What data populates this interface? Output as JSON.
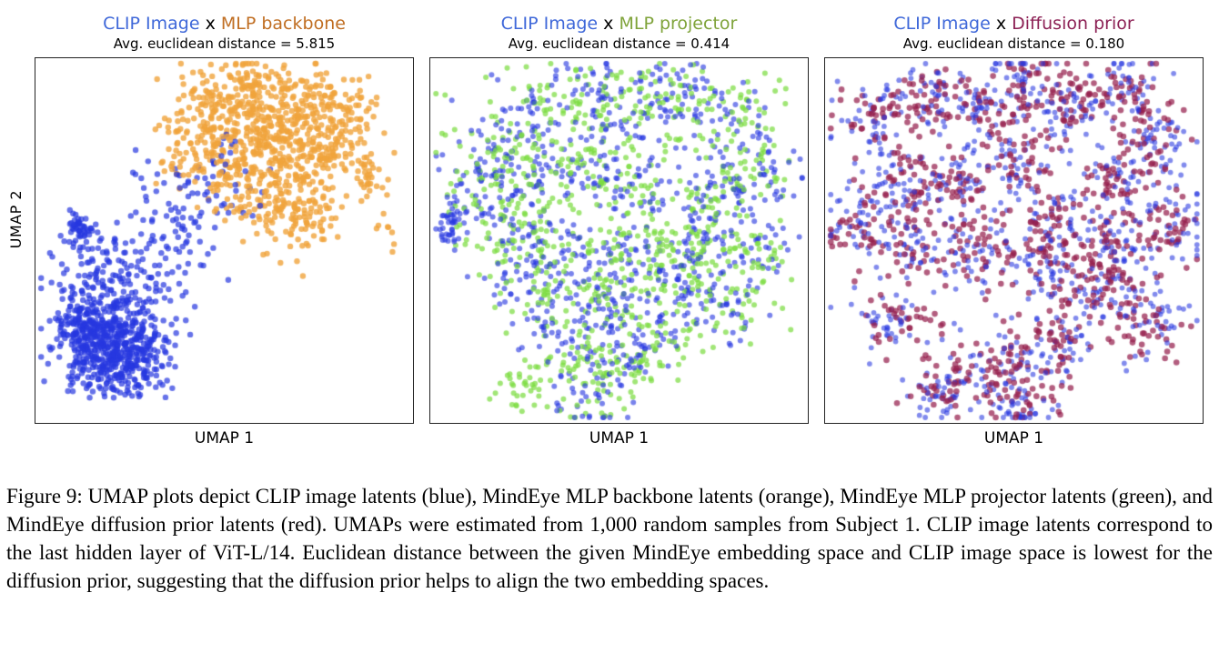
{
  "caption": "Figure 9: UMAP plots depict CLIP image latents (blue), MindEye MLP backbone latents (orange), MindEye MLP projector latents (green), and MindEye diffusion prior latents (red). UMAPs were estimated from 1,000 random samples from Subject 1. CLIP image latents correspond to the last hidden layer of ViT-L/14. Euclidean distance between the given MindEye embedding space and CLIP image space is lowest for the diffusion prior, suggesting that the diffusion prior helps to align the two embedding spaces.",
  "chart_data": [
    {
      "type": "scatter",
      "title_left": "CLIP Image",
      "title_sep": "x",
      "title_right": "MLP backbone",
      "title_left_color": "#3f68d9",
      "title_right_color": "#c06e22",
      "subtitle": "Avg. euclidean distance = 5.815",
      "xlabel": "UMAP 1",
      "ylabel": "UMAP 2",
      "legend": "none",
      "grid": false,
      "seed": 11,
      "series": [
        {
          "name": "CLIP image latents",
          "color": "#2737e0",
          "alpha": 0.7,
          "radius": 3.2,
          "spread": 0.055,
          "n_per_cluster": 40,
          "clusters": [
            [
              0.17,
              0.8,
              0.055,
              0.05,
              240
            ],
            [
              0.22,
              0.74,
              0.06,
              0.055,
              190
            ],
            [
              0.13,
              0.73,
              0.045,
              0.045,
              110
            ],
            [
              0.27,
              0.82,
              0.05,
              0.04,
              100
            ],
            [
              0.21,
              0.88,
              0.05,
              0.03,
              60
            ],
            [
              0.22,
              0.62,
              0.09,
              0.07,
              80
            ],
            [
              0.33,
              0.55,
              0.08,
              0.07,
              50
            ],
            [
              0.15,
              0.55,
              0.06,
              0.05,
              40
            ],
            [
              0.4,
              0.44,
              0.06,
              0.06,
              30
            ],
            [
              0.3,
              0.38,
              0.05,
              0.05,
              18
            ],
            [
              0.115,
              0.47,
              0.018,
              0.022,
              45
            ],
            [
              0.45,
              0.33,
              0.04,
              0.04,
              14
            ],
            [
              0.52,
              0.24,
              0.05,
              0.05,
              10
            ],
            [
              0.55,
              0.4,
              0.04,
              0.04,
              8
            ]
          ]
        },
        {
          "name": "MindEye MLP backbone latents",
          "color": "#f0a43c",
          "alpha": 0.8,
          "radius": 3.2,
          "spread": 0.06,
          "n_per_cluster": 40,
          "clusters": [
            [
              0.6,
              0.22,
              0.09,
              0.08,
              170
            ],
            [
              0.7,
              0.15,
              0.07,
              0.06,
              140
            ],
            [
              0.52,
              0.12,
              0.06,
              0.05,
              100
            ],
            [
              0.48,
              0.28,
              0.06,
              0.06,
              90
            ],
            [
              0.66,
              0.32,
              0.08,
              0.06,
              120
            ],
            [
              0.78,
              0.25,
              0.06,
              0.06,
              90
            ],
            [
              0.57,
              0.06,
              0.05,
              0.03,
              50
            ],
            [
              0.72,
              0.45,
              0.05,
              0.05,
              60
            ],
            [
              0.83,
              0.12,
              0.04,
              0.04,
              40
            ],
            [
              0.62,
              0.42,
              0.06,
              0.04,
              50
            ],
            [
              0.42,
              0.18,
              0.05,
              0.05,
              40
            ],
            [
              0.87,
              0.33,
              0.035,
              0.04,
              25
            ],
            [
              0.93,
              0.47,
              0.02,
              0.03,
              8
            ],
            [
              0.36,
              0.3,
              0.03,
              0.03,
              12
            ]
          ]
        }
      ]
    },
    {
      "type": "scatter",
      "title_left": "CLIP Image",
      "title_sep": "x",
      "title_right": "MLP projector",
      "title_left_color": "#3f68d9",
      "title_right_color": "#7fa33a",
      "subtitle": "Avg. euclidean distance = 0.414",
      "xlabel": "UMAP 1",
      "ylabel": "",
      "legend": "none",
      "grid": false,
      "seed": 22,
      "series": [
        {
          "name": "CLIP image latents",
          "color": "#2737e0",
          "alpha": 0.62,
          "radius": 3.0,
          "spread": 0.055,
          "n_per_cluster": 38,
          "clusters": [
            [
              0.28,
              0.16
            ],
            [
              0.42,
              0.1
            ],
            [
              0.55,
              0.14
            ],
            [
              0.68,
              0.1
            ],
            [
              0.8,
              0.18
            ],
            [
              0.88,
              0.3
            ],
            [
              0.78,
              0.38
            ],
            [
              0.86,
              0.52
            ],
            [
              0.7,
              0.5
            ],
            [
              0.55,
              0.35
            ],
            [
              0.42,
              0.28
            ],
            [
              0.28,
              0.3
            ],
            [
              0.12,
              0.38
            ],
            [
              0.22,
              0.48
            ],
            [
              0.36,
              0.52
            ],
            [
              0.52,
              0.55
            ],
            [
              0.66,
              0.62
            ],
            [
              0.78,
              0.68
            ],
            [
              0.45,
              0.68
            ],
            [
              0.32,
              0.75
            ],
            [
              0.5,
              0.82
            ],
            [
              0.4,
              0.92
            ],
            [
              0.25,
              0.62
            ],
            [
              0.6,
              0.75
            ],
            [
              0.15,
              0.25
            ],
            [
              0.05,
              0.46,
              0.02,
              0.03,
              40
            ]
          ]
        },
        {
          "name": "MindEye MLP projector latents",
          "color": "#7ddc43",
          "alpha": 0.72,
          "radius": 3.0,
          "spread": 0.06,
          "n_per_cluster": 38,
          "clusters": [
            [
              0.3,
              0.14
            ],
            [
              0.44,
              0.12
            ],
            [
              0.57,
              0.12
            ],
            [
              0.7,
              0.12
            ],
            [
              0.82,
              0.16
            ],
            [
              0.86,
              0.32
            ],
            [
              0.76,
              0.4
            ],
            [
              0.84,
              0.54
            ],
            [
              0.68,
              0.48
            ],
            [
              0.53,
              0.37
            ],
            [
              0.4,
              0.3
            ],
            [
              0.26,
              0.32
            ],
            [
              0.14,
              0.4
            ],
            [
              0.24,
              0.46
            ],
            [
              0.38,
              0.54
            ],
            [
              0.54,
              0.53
            ],
            [
              0.68,
              0.6
            ],
            [
              0.8,
              0.66
            ],
            [
              0.47,
              0.66
            ],
            [
              0.34,
              0.77
            ],
            [
              0.52,
              0.84
            ],
            [
              0.42,
              0.9
            ],
            [
              0.27,
              0.6
            ],
            [
              0.62,
              0.77
            ],
            [
              0.17,
              0.23
            ],
            [
              0.23,
              0.9,
              0.04,
              0.04,
              30
            ]
          ]
        }
      ]
    },
    {
      "type": "scatter",
      "title_left": "CLIP Image",
      "title_sep": "x",
      "title_right": "Diffusion prior",
      "title_left_color": "#3f68d9",
      "title_right_color": "#8c2155",
      "subtitle": "Avg. euclidean distance = 0.180",
      "xlabel": "UMAP 1",
      "ylabel": "",
      "legend": "none",
      "grid": false,
      "seed": 33,
      "series": [
        {
          "name": "CLIP image latents",
          "color": "#2737e0",
          "alpha": 0.58,
          "radius": 2.9,
          "spread": 0.05,
          "n_per_cluster": 40,
          "clusters": [
            [
              0.12,
              0.18
            ],
            [
              0.26,
              0.1
            ],
            [
              0.4,
              0.14
            ],
            [
              0.52,
              0.06
            ],
            [
              0.64,
              0.14
            ],
            [
              0.78,
              0.08
            ],
            [
              0.88,
              0.2
            ],
            [
              0.8,
              0.32
            ],
            [
              0.92,
              0.45
            ],
            [
              0.78,
              0.52
            ],
            [
              0.63,
              0.42
            ],
            [
              0.5,
              0.3
            ],
            [
              0.36,
              0.32
            ],
            [
              0.2,
              0.36
            ],
            [
              0.08,
              0.45
            ],
            [
              0.25,
              0.52
            ],
            [
              0.42,
              0.55
            ],
            [
              0.58,
              0.58
            ],
            [
              0.72,
              0.65
            ],
            [
              0.86,
              0.72
            ],
            [
              0.6,
              0.78
            ],
            [
              0.45,
              0.85
            ],
            [
              0.3,
              0.92
            ],
            [
              0.18,
              0.72
            ],
            [
              0.5,
              0.95
            ]
          ]
        },
        {
          "name": "MindEye diffusion prior latents",
          "color": "#96204e",
          "alpha": 0.72,
          "radius": 3.3,
          "spread": 0.05,
          "n_per_cluster": 40,
          "clusters": [
            [
              0.14,
              0.16
            ],
            [
              0.28,
              0.12
            ],
            [
              0.42,
              0.12
            ],
            [
              0.54,
              0.08
            ],
            [
              0.66,
              0.12
            ],
            [
              0.8,
              0.1
            ],
            [
              0.86,
              0.22
            ],
            [
              0.78,
              0.34
            ],
            [
              0.9,
              0.47
            ],
            [
              0.76,
              0.54
            ],
            [
              0.61,
              0.44
            ],
            [
              0.52,
              0.28
            ],
            [
              0.34,
              0.34
            ],
            [
              0.22,
              0.34
            ],
            [
              0.1,
              0.47
            ],
            [
              0.27,
              0.5
            ],
            [
              0.44,
              0.53
            ],
            [
              0.6,
              0.56
            ],
            [
              0.74,
              0.63
            ],
            [
              0.84,
              0.74
            ],
            [
              0.62,
              0.76
            ],
            [
              0.47,
              0.83
            ],
            [
              0.32,
              0.9
            ],
            [
              0.2,
              0.7
            ],
            [
              0.52,
              0.93
            ]
          ]
        }
      ]
    }
  ]
}
